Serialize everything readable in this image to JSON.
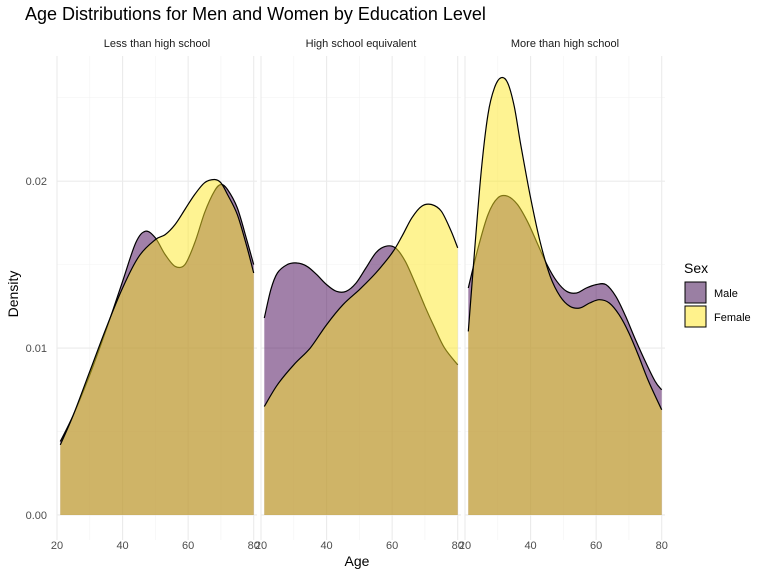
{
  "chart_data": {
    "type": "area",
    "title": "Age Distributions for Men and Women by Education Level",
    "xlabel": "Age",
    "ylabel": "Density",
    "xlim": [
      20,
      81
    ],
    "ylim": [
      -0.0015,
      0.0275
    ],
    "x_ticks": [
      20,
      40,
      60,
      80
    ],
    "y_ticks": [
      0.0,
      0.01,
      0.02
    ],
    "y_tick_labels": [
      "0.00",
      "0.01",
      "0.02"
    ],
    "grid": true,
    "legend": {
      "title": "Sex",
      "position": "right",
      "entries": [
        {
          "name": "Male",
          "color": "#9a7fa3"
        },
        {
          "name": "Female",
          "color": "#fff28c"
        }
      ]
    },
    "colors": {
      "male": "#440154",
      "female": "#fde725",
      "outline": "#000000"
    },
    "fill_opacity": 0.5,
    "panels": [
      {
        "label": "Less than high school",
        "series": [
          {
            "name": "Male",
            "x": [
              21,
              25,
              30,
              35,
              40,
              44,
              47,
              50,
              53,
              56,
              59,
              62,
              65,
              68,
              70,
              72,
              75,
              78,
              80
            ],
            "y": [
              0.0044,
              0.006,
              0.0084,
              0.0111,
              0.014,
              0.0163,
              0.017,
              0.0166,
              0.0156,
              0.0149,
              0.015,
              0.0163,
              0.0181,
              0.0194,
              0.0198,
              0.0195,
              0.0184,
              0.0164,
              0.015
            ]
          },
          {
            "name": "Female",
            "x": [
              21,
              25,
              30,
              35,
              40,
              45,
              50,
              53,
              56,
              59,
              62,
              65,
              68,
              70,
              72,
              75,
              78,
              80
            ],
            "y": [
              0.0042,
              0.006,
              0.0086,
              0.0112,
              0.0136,
              0.0155,
              0.0165,
              0.0168,
              0.0174,
              0.0183,
              0.0192,
              0.0199,
              0.0201,
              0.0199,
              0.0192,
              0.018,
              0.016,
              0.0145
            ]
          }
        ]
      },
      {
        "label": "High school equivalent",
        "series": [
          {
            "name": "Male",
            "x": [
              21,
              23,
              25,
              28,
              31,
              34,
              37,
              40,
              43,
              46,
              49,
              52,
              55,
              58,
              61,
              64,
              67,
              70,
              73,
              76,
              80
            ],
            "y": [
              0.0118,
              0.0135,
              0.0145,
              0.015,
              0.0151,
              0.0149,
              0.0144,
              0.0138,
              0.0134,
              0.0134,
              0.0139,
              0.0148,
              0.0157,
              0.0161,
              0.016,
              0.0152,
              0.0139,
              0.0125,
              0.0112,
              0.01,
              0.009
            ]
          },
          {
            "name": "Female",
            "x": [
              21,
              25,
              30,
              35,
              40,
              45,
              50,
              55,
              60,
              63,
              66,
              69,
              72,
              75,
              78,
              80
            ],
            "y": [
              0.0065,
              0.0078,
              0.009,
              0.01,
              0.0114,
              0.0126,
              0.0135,
              0.0145,
              0.0157,
              0.0167,
              0.0178,
              0.0185,
              0.0186,
              0.0182,
              0.017,
              0.016
            ]
          }
        ]
      },
      {
        "label": "More than high school",
        "series": [
          {
            "name": "Male",
            "x": [
              21,
              24,
              27,
              30,
              33,
              36,
              39,
              42,
              45,
              48,
              51,
              54,
              57,
              60,
              63,
              66,
              69,
              72,
              75,
              78,
              80
            ],
            "y": [
              0.0136,
              0.016,
              0.018,
              0.019,
              0.0191,
              0.0186,
              0.0176,
              0.0163,
              0.015,
              0.014,
              0.0134,
              0.0133,
              0.0136,
              0.0138,
              0.0138,
              0.0131,
              0.0119,
              0.0105,
              0.0092,
              0.008,
              0.0075
            ]
          },
          {
            "name": "Female",
            "x": [
              21,
              23,
              25,
              27,
              29,
              31,
              33,
              35,
              37,
              40,
              43,
              46,
              49,
              52,
              55,
              58,
              61,
              64,
              67,
              70,
              73,
              76,
              80
            ],
            "y": [
              0.011,
              0.016,
              0.0207,
              0.024,
              0.0256,
              0.0262,
              0.0259,
              0.0245,
              0.0222,
              0.019,
              0.0163,
              0.0143,
              0.0131,
              0.0125,
              0.0124,
              0.0127,
              0.0129,
              0.0127,
              0.012,
              0.0109,
              0.0095,
              0.008,
              0.0063
            ]
          }
        ]
      }
    ]
  }
}
